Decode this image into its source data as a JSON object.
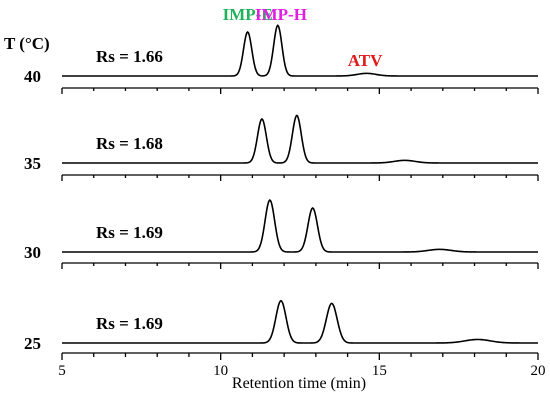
{
  "chart_data": {
    "type": "line",
    "title": "",
    "xlabel": "Retention time (min)",
    "ylabel": "T (°C)",
    "xlim": [
      5,
      20
    ],
    "x_ticks": [
      5,
      10,
      15,
      20
    ],
    "grid": false,
    "peak_labels": [
      {
        "text": "IMP-E",
        "color": "#1fb35a",
        "x": 10.85
      },
      {
        "text": "IMP-H",
        "color": "#e020e0",
        "x": 11.9
      },
      {
        "text": "ATV",
        "color": "#e01a1a",
        "x": 14.55
      }
    ],
    "series": [
      {
        "temperature": "40",
        "rs": "Rs = 1.66",
        "peaks": [
          {
            "center": 10.85,
            "height": 1.0,
            "width": 0.13
          },
          {
            "center": 11.8,
            "height": 1.15,
            "width": 0.13
          },
          {
            "center": 14.6,
            "height": 0.06,
            "width": 0.3
          }
        ]
      },
      {
        "temperature": "35",
        "rs": "Rs = 1.68",
        "peaks": [
          {
            "center": 11.3,
            "height": 1.0,
            "width": 0.14
          },
          {
            "center": 12.4,
            "height": 1.08,
            "width": 0.14
          },
          {
            "center": 15.8,
            "height": 0.06,
            "width": 0.33
          }
        ]
      },
      {
        "temperature": "30",
        "rs": "Rs = 1.69",
        "peaks": [
          {
            "center": 11.55,
            "height": 1.18,
            "width": 0.15
          },
          {
            "center": 12.9,
            "height": 1.0,
            "width": 0.15
          },
          {
            "center": 16.9,
            "height": 0.06,
            "width": 0.36
          }
        ]
      },
      {
        "temperature": "25",
        "rs": "Rs = 1.69",
        "peaks": [
          {
            "center": 11.9,
            "height": 0.96,
            "width": 0.16
          },
          {
            "center": 13.5,
            "height": 0.9,
            "width": 0.17
          },
          {
            "center": 18.1,
            "height": 0.08,
            "width": 0.4
          }
        ]
      }
    ]
  }
}
